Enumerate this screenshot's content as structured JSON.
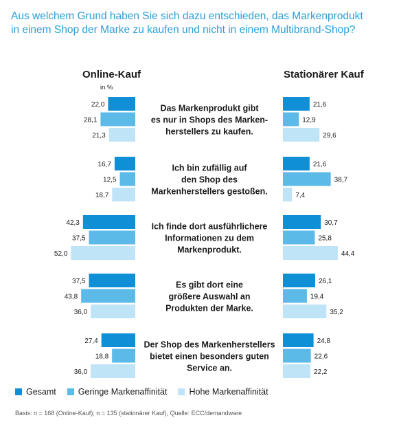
{
  "title_lines": [
    "Aus welchem Grund haben Sie sich dazu entschieden, das Markenprodukt",
    "in einem Shop der Marke zu kaufen und nicht in einem Multibrand-Shop?"
  ],
  "unit": "in %",
  "footnote": "Basis: n = 168 (Online-Kauf); n = 135 (stationärer Kauf), Quelle: ECC/demandware",
  "colors": {
    "gesamt": "#0f8fd6",
    "gering": "#5bbae8",
    "hoch": "#bfe3f7",
    "title": "#2a9fd8"
  },
  "chart_data": {
    "type": "bar",
    "orientation": "horizontal-butterfly",
    "columns": [
      "Online-Kauf",
      "Stationärer Kauf"
    ],
    "categories": [
      [
        "Das Markenprodukt gibt",
        "es nur in Shops des Marken-",
        "herstellers zu kaufen."
      ],
      [
        "Ich bin zufällig auf",
        "den Shop des",
        "Markenherstellers gestoßen."
      ],
      [
        "Ich finde dort ausführlichere",
        "Informationen zu dem",
        "Markenprodukt."
      ],
      [
        "Es gibt dort eine",
        "größere Auswahl an",
        "Produkten der Marke."
      ],
      [
        "Der Shop des Markenherstellers",
        "bietet einen besonders guten",
        "Service an."
      ]
    ],
    "series": [
      {
        "name": "Gesamt",
        "online": [
          22.0,
          16.7,
          42.3,
          37.5,
          27.4
        ],
        "stationaer": [
          21.6,
          21.6,
          30.7,
          26.1,
          24.8
        ]
      },
      {
        "name": "Geringe Markenaffinität",
        "online": [
          28.1,
          12.5,
          37.5,
          43.8,
          18.8
        ],
        "stationaer": [
          12.9,
          38.7,
          25.8,
          19.4,
          22.6
        ]
      },
      {
        "name": "Hohe Markenaffinität",
        "online": [
          21.3,
          18.7,
          52.0,
          36.0,
          36.0
        ],
        "stationaer": [
          29.6,
          7.4,
          44.4,
          35.2,
          22.2
        ]
      }
    ]
  }
}
